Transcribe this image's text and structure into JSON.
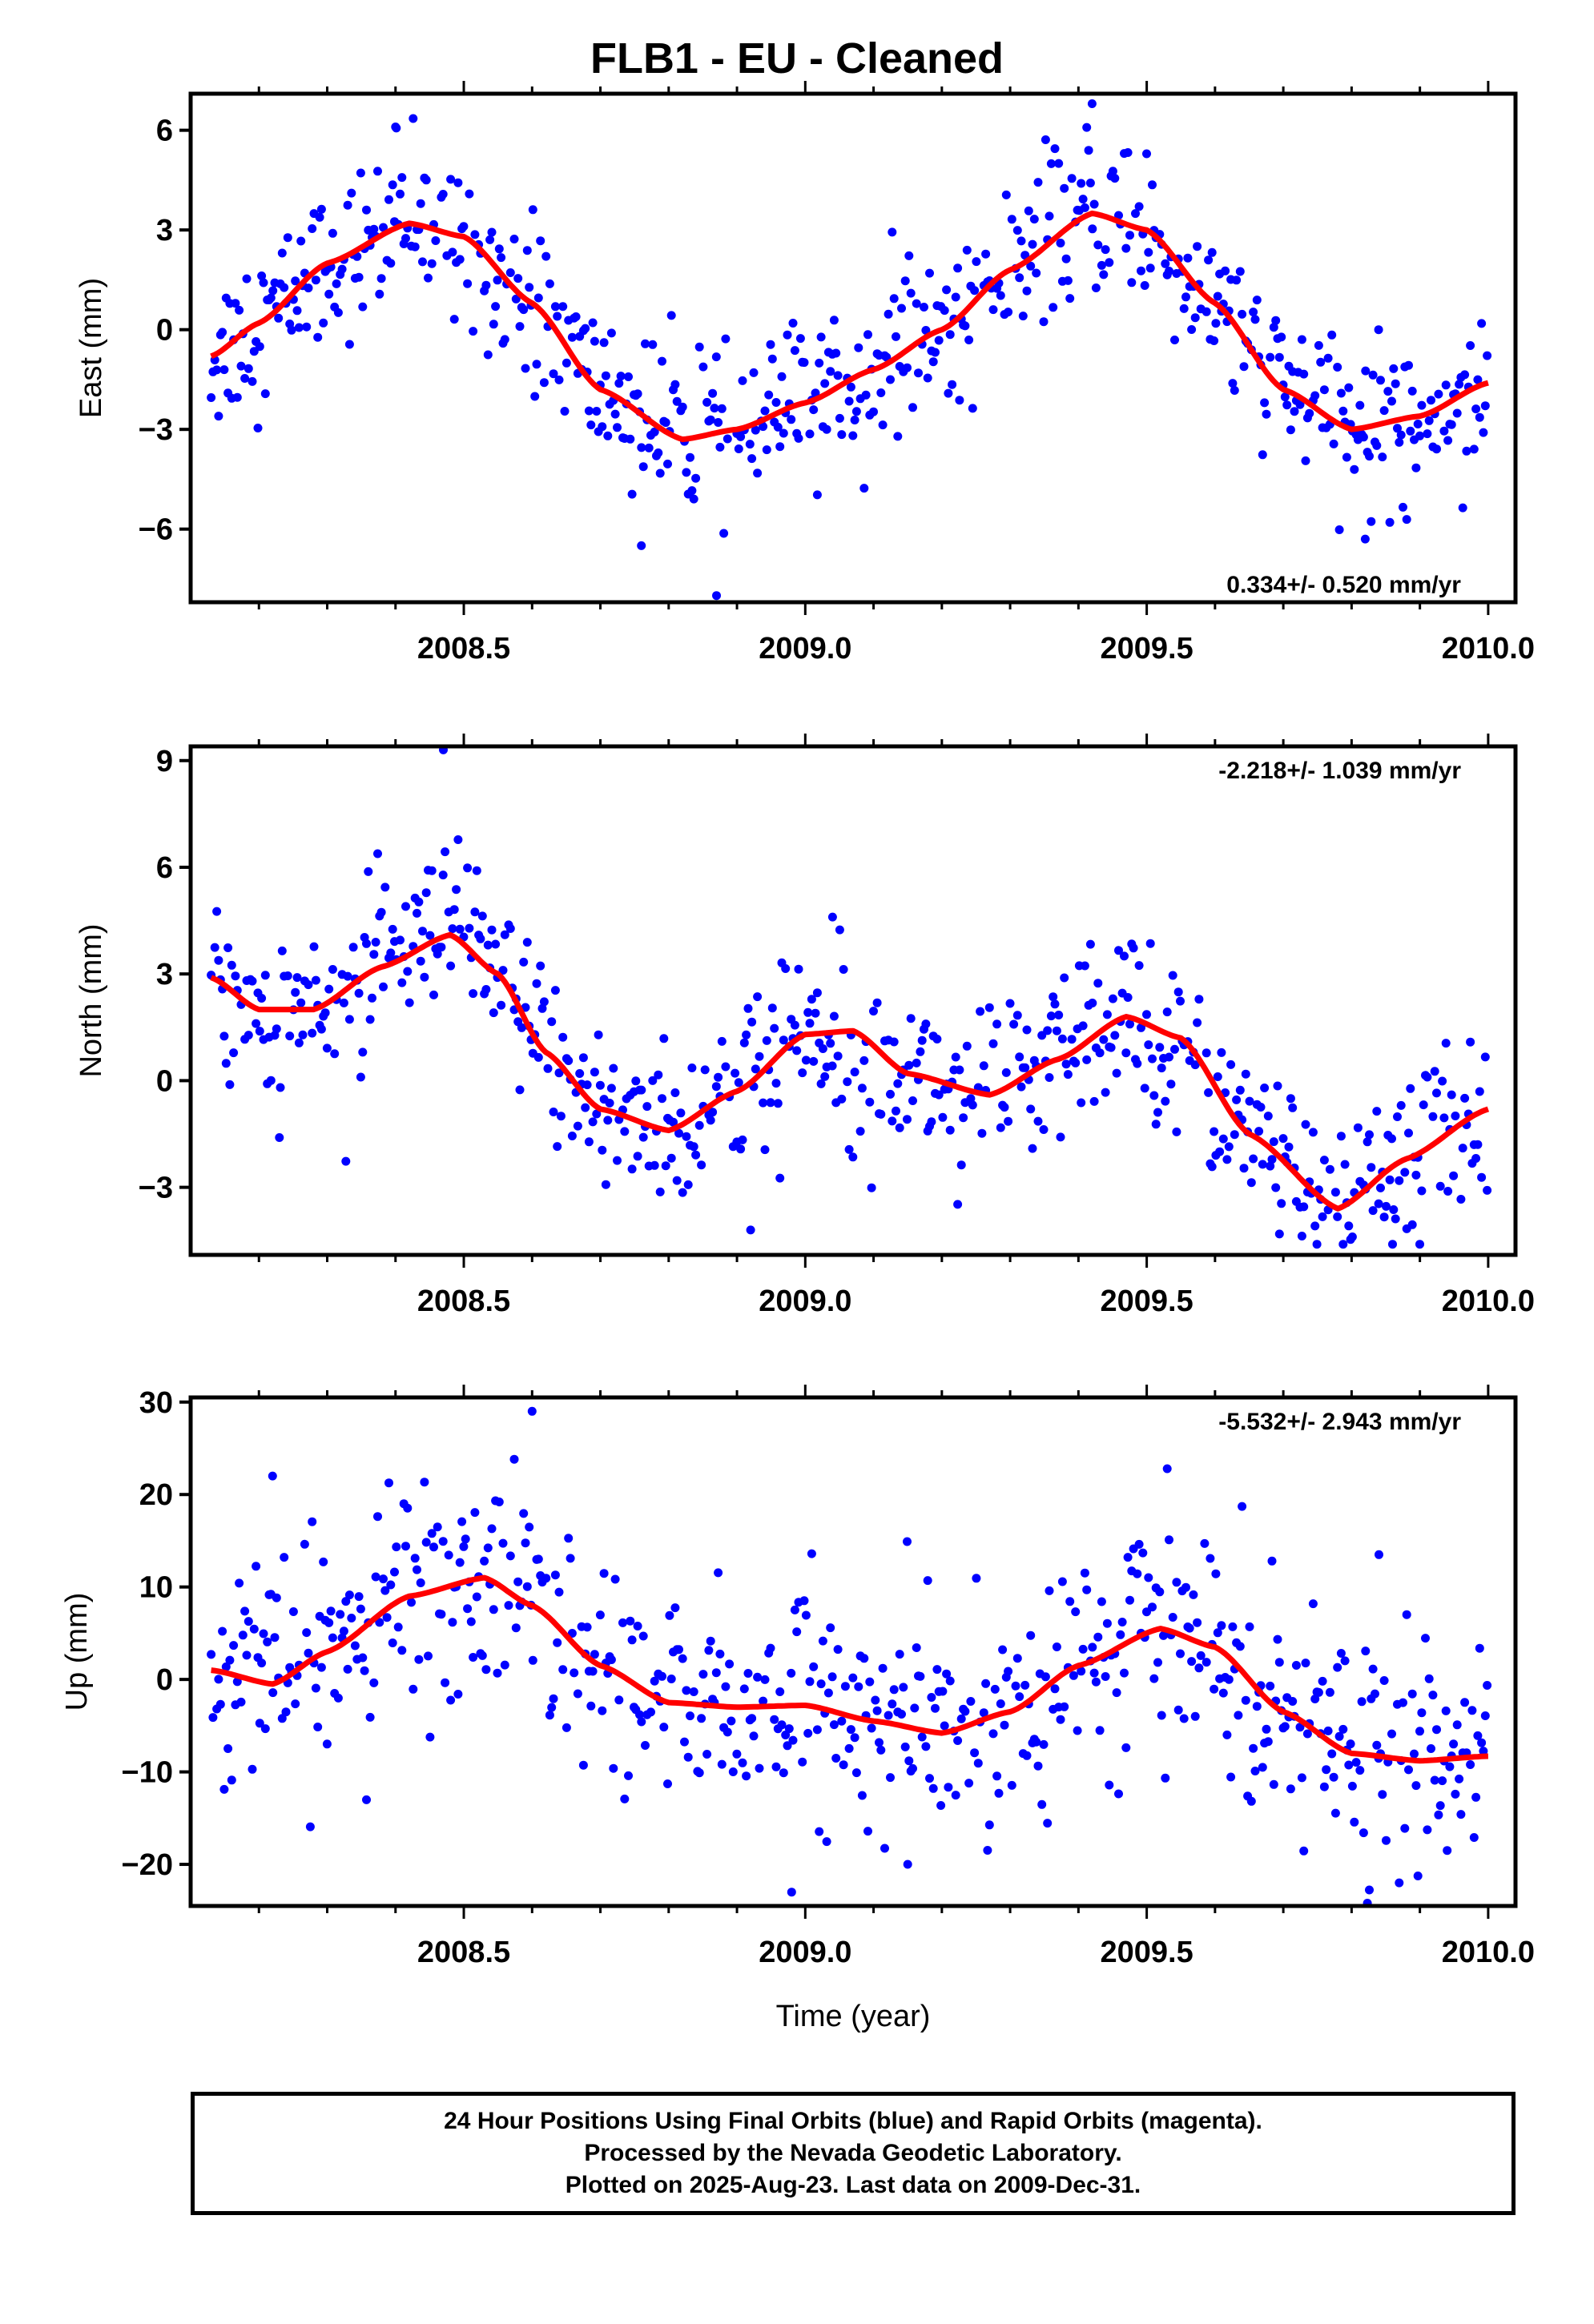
{
  "title": "FLB1  - EU - Cleaned",
  "footer": {
    "line1": "24 Hour Positions Using Final Orbits (blue) and Rapid Orbits (magenta).",
    "line2": "Processed by the Nevada Geodetic Laboratory.",
    "line3": "Plotted on 2025-Aug-23. Last data on 2009-Dec-31."
  },
  "colors": {
    "points": "#0000ff",
    "fit": "#ff0000",
    "axes": "#000000"
  },
  "chart_data": [
    {
      "type": "scatter",
      "ylabel": "East (mm)",
      "xlabel": "",
      "rate": "0.334+/- 0.520 mm/yr",
      "rate_position": "bottom-right",
      "xlim": [
        2008.1,
        2010.04
      ],
      "ylim": [
        -8.2,
        7.1
      ],
      "yticks": [
        -6,
        -3,
        0,
        3,
        6
      ],
      "ytick_labels": [
        "−6",
        "−3",
        "0",
        "3",
        "6"
      ],
      "xticks": [
        2008.5,
        2009.0,
        2009.5,
        2010.0
      ],
      "xtick_labels": [
        "2008.5",
        "2009.0",
        "2009.5",
        "2010.0"
      ],
      "fit": {
        "x": [
          2008.13,
          2008.2,
          2008.3,
          2008.42,
          2008.5,
          2008.6,
          2008.7,
          2008.82,
          2008.9,
          2009.0,
          2009.1,
          2009.2,
          2009.3,
          2009.42,
          2009.5,
          2009.6,
          2009.7,
          2009.8,
          2009.9,
          2010.0
        ],
        "y": [
          -0.8,
          0.2,
          2.0,
          3.2,
          2.8,
          0.8,
          -1.8,
          -3.3,
          -3.0,
          -2.2,
          -1.2,
          0.0,
          1.8,
          3.5,
          3.0,
          0.8,
          -1.8,
          -3.0,
          -2.6,
          -1.6
        ]
      },
      "points": {
        "period": 1.0,
        "phase": 2008.17,
        "amp": 3.2,
        "offset": 0.0,
        "trend": 0.1,
        "noise": 1.2,
        "spikes": [
          [
            2008.4,
            6.1
          ],
          [
            2008.87,
            -8.0
          ],
          [
            2008.76,
            -6.5
          ],
          [
            2009.42,
            6.8
          ],
          [
            2009.82,
            -6.3
          ]
        ]
      }
    },
    {
      "type": "scatter",
      "ylabel": "North (mm)",
      "xlabel": "",
      "rate": "-2.218+/- 1.039 mm/yr",
      "rate_position": "top-right",
      "xlim": [
        2008.1,
        2010.04
      ],
      "ylim": [
        -4.9,
        9.4
      ],
      "yticks": [
        -3,
        0,
        3,
        6,
        9
      ],
      "ytick_labels": [
        "−3",
        "0",
        "3",
        "6",
        "9"
      ],
      "xticks": [
        2008.5,
        2009.0,
        2009.5,
        2010.0
      ],
      "xtick_labels": [
        "2008.5",
        "2009.0",
        "2009.5",
        "2010.0"
      ],
      "fit": {
        "x": [
          2008.13,
          2008.2,
          2008.28,
          2008.38,
          2008.48,
          2008.55,
          2008.62,
          2008.7,
          2008.8,
          2008.9,
          2009.0,
          2009.07,
          2009.15,
          2009.27,
          2009.37,
          2009.47,
          2009.55,
          2009.65,
          2009.78,
          2009.88,
          2010.0
        ],
        "y": [
          2.9,
          2.0,
          2.0,
          3.2,
          4.1,
          3.0,
          0.8,
          -0.8,
          -1.4,
          -0.3,
          1.3,
          1.4,
          0.2,
          -0.4,
          0.6,
          1.8,
          1.2,
          -1.5,
          -3.6,
          -2.2,
          -0.8
        ]
      },
      "points": {
        "spikes": [
          [
            2008.47,
            9.3
          ],
          [
            2008.23,
            -1.6
          ],
          [
            2008.92,
            -4.2
          ],
          [
            2009.86,
            -4.6
          ],
          [
            2009.04,
            4.6
          ]
        ]
      }
    },
    {
      "type": "scatter",
      "ylabel": "Up (mm)",
      "xlabel": "Time (year)",
      "rate": "-5.532+/- 2.943 mm/yr",
      "rate_position": "top-right",
      "xlim": [
        2008.1,
        2010.04
      ],
      "ylim": [
        -24.5,
        30.5
      ],
      "yticks": [
        -20,
        -10,
        0,
        10,
        20,
        30
      ],
      "ytick_labels": [
        "−20",
        "−10",
        "0",
        "10",
        "20",
        "30"
      ],
      "xticks": [
        2008.5,
        2009.0,
        2009.5,
        2010.0
      ],
      "xtick_labels": [
        "2008.5",
        "2009.0",
        "2009.5",
        "2010.0"
      ],
      "fit": {
        "x": [
          2008.13,
          2008.22,
          2008.3,
          2008.42,
          2008.53,
          2008.6,
          2008.7,
          2008.8,
          2008.9,
          2009.0,
          2009.1,
          2009.2,
          2009.3,
          2009.4,
          2009.52,
          2009.6,
          2009.7,
          2009.8,
          2009.9,
          2010.0
        ],
        "y": [
          1.0,
          -0.5,
          3.0,
          9.0,
          11.0,
          8.0,
          1.5,
          -2.5,
          -3.0,
          -2.8,
          -4.5,
          -5.8,
          -3.5,
          1.5,
          5.5,
          3.5,
          -3.5,
          -8.0,
          -8.8,
          -8.3
        ]
      },
      "points": {
        "noise": 6.0,
        "spikes": [
          [
            2008.6,
            29.0
          ],
          [
            2008.22,
            22.0
          ],
          [
            2008.98,
            -23.0
          ],
          [
            2009.84,
            13.5
          ],
          [
            2009.94,
            -18.5
          ],
          [
            2009.15,
            -20.0
          ]
        ]
      }
    }
  ]
}
